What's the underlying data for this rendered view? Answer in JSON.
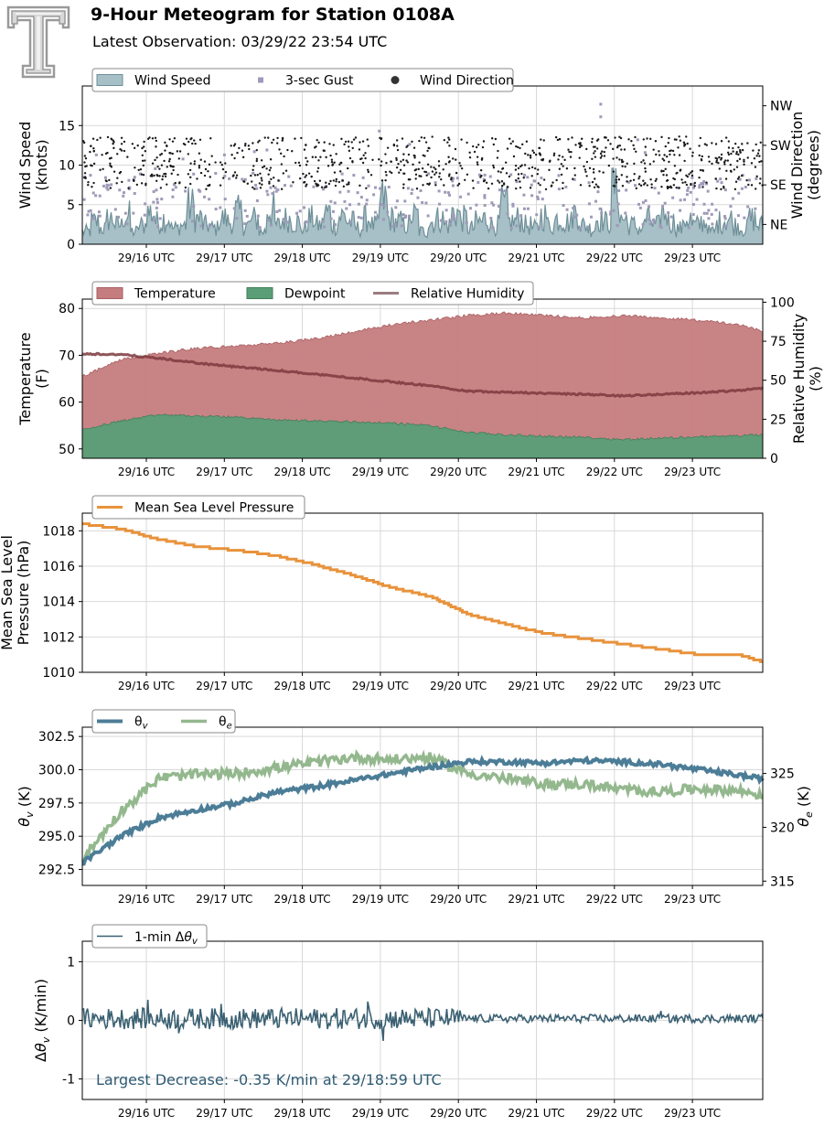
{
  "header": {
    "title": "9-Hour Meteogram for Station 0108A",
    "subtitle": "Latest Observation: 03/29/22 23:54 UTC"
  },
  "colors": {
    "wind_speed_fill": "#a7bfc6",
    "wind_speed_line": "#6e8f98",
    "gust": "#9e9ab8",
    "direction": "#1a1a1a",
    "temperature": "#c57c7e",
    "dewpoint": "#5a9e77",
    "humidity": "#7c3a3d",
    "pressure": "#e8923b",
    "theta_v": "#4c7d97",
    "theta_e": "#94b88e",
    "dtheta": "#3a6072",
    "annotation": "#2e5b74",
    "logo": "#9a9a9a"
  },
  "chart_data": [
    {
      "id": "wind",
      "type": "area",
      "x_range": [
        "03/29 15:05",
        "03/29 23:54"
      ],
      "x_tick_labels": [
        "29/16 UTC",
        "29/17 UTC",
        "29/18 UTC",
        "29/19 UTC",
        "29/20 UTC",
        "29/21 UTC",
        "29/22 UTC",
        "29/23 UTC"
      ],
      "ylabel": "Wind Speed\n(knots)",
      "ylim": [
        0,
        20
      ],
      "y_ticks": [
        0,
        5,
        10,
        15
      ],
      "y2label": "Wind Direction\n(degrees)",
      "y2lim": [
        0,
        360
      ],
      "y2_ticks": [
        {
          "value": 45,
          "label": "NE"
        },
        {
          "value": 135,
          "label": "SE"
        },
        {
          "value": 225,
          "label": "SW"
        },
        {
          "value": 315,
          "label": "NW"
        }
      ],
      "legend": [
        "Wind Speed",
        "3-sec Gust",
        "Wind Direction"
      ],
      "legend_placement": "top-left",
      "grid": true,
      "series": [
        {
          "name": "Wind Speed",
          "kind": "filled-area",
          "approx_mean_knots": 2.8,
          "approx_max_knots": 9.5,
          "shape": [
            2,
            3.5,
            2.5,
            4,
            3,
            4.5,
            2,
            3,
            5,
            3.5,
            4,
            2.5,
            3,
            6,
            4,
            3,
            2.5,
            4,
            3.5,
            5,
            3,
            4,
            2,
            5.5,
            3,
            4,
            3.5,
            2.5,
            4,
            3,
            5,
            3,
            4.5,
            3.5,
            2.5,
            4,
            3,
            7,
            4,
            3.5,
            3,
            4.5,
            2,
            3.5,
            4,
            3,
            5,
            4,
            2.5,
            3.5,
            4,
            3,
            6,
            3.5,
            4,
            3,
            2.5,
            4.5,
            3,
            4,
            3.5,
            5,
            3,
            2.5,
            4,
            3.5,
            9.5,
            4,
            3,
            2.5,
            4,
            3,
            5,
            3.5,
            2.5,
            4,
            3,
            3.5,
            2,
            3.5,
            4,
            3,
            2.5,
            4,
            3
          ]
        },
        {
          "name": "3-sec Gust",
          "kind": "scatter",
          "approx_range_knots": [
            1,
            18
          ],
          "approx_mean_knots": 6,
          "notable_max_knots": 17.7,
          "notable_max_time": "03/29 22:09"
        },
        {
          "name": "Wind Direction",
          "kind": "scatter",
          "approx_range_degrees": [
            120,
            250
          ],
          "approx_mean_degrees": 185
        }
      ]
    },
    {
      "id": "thermo",
      "type": "area",
      "x_tick_labels": [
        "29/16 UTC",
        "29/17 UTC",
        "29/18 UTC",
        "29/19 UTC",
        "29/20 UTC",
        "29/21 UTC",
        "29/22 UTC",
        "29/23 UTC"
      ],
      "ylabel": "Temperature\n(F)",
      "ylim": [
        48,
        82
      ],
      "y_ticks": [
        50,
        60,
        70,
        80
      ],
      "y2label": "Relative Humidity\n(%)",
      "y2lim": [
        0,
        102
      ],
      "y2_ticks": [
        0,
        25,
        50,
        75,
        100
      ],
      "legend": [
        "Temperature",
        "Dewpoint",
        "Relative Humidity"
      ],
      "legend_placement": "top-left",
      "grid": true,
      "series": [
        {
          "name": "Temperature",
          "unit": "F",
          "x_hours": [
            0,
            0.5,
            1,
            1.5,
            2,
            2.5,
            3,
            3.5,
            4,
            4.5,
            5,
            5.5,
            6,
            6.5,
            7,
            7.5,
            8,
            8.5,
            8.82
          ],
          "values": [
            65.5,
            69,
            70.5,
            71.5,
            72,
            72.5,
            73.5,
            75,
            76.5,
            77.5,
            78.5,
            79,
            78.5,
            78,
            78.5,
            78,
            77.5,
            76.5,
            75.2
          ]
        },
        {
          "name": "Dewpoint",
          "unit": "F",
          "x_hours": [
            0,
            0.5,
            1,
            1.5,
            2,
            2.5,
            3,
            3.5,
            4,
            4.5,
            5,
            5.5,
            6,
            6.5,
            7,
            7.5,
            8,
            8.5,
            8.82
          ],
          "values": [
            54,
            56,
            57.3,
            57,
            56.8,
            56.2,
            56,
            55.8,
            55.5,
            55,
            53.5,
            53,
            52.7,
            52.5,
            52,
            52.3,
            52.6,
            52.8,
            53
          ]
        },
        {
          "name": "Relative Humidity",
          "unit": "%",
          "x_hours": [
            0,
            0.5,
            1,
            1.5,
            2,
            2.5,
            3,
            3.5,
            4,
            4.5,
            5,
            5.5,
            6,
            6.5,
            7,
            7.5,
            8,
            8.5,
            8.82
          ],
          "values": [
            67,
            66.5,
            64,
            61,
            58.5,
            56.5,
            54,
            51.5,
            49,
            46.5,
            43,
            42.5,
            41.5,
            41,
            40,
            41,
            42,
            43.5,
            45
          ]
        }
      ]
    },
    {
      "id": "pressure",
      "type": "line",
      "x_tick_labels": [
        "29/16 UTC",
        "29/17 UTC",
        "29/18 UTC",
        "29/19 UTC",
        "29/20 UTC",
        "29/21 UTC",
        "29/22 UTC",
        "29/23 UTC"
      ],
      "ylabel": "Mean Sea Level\nPressure (hPa)",
      "ylim": [
        1010,
        1019
      ],
      "y_ticks": [
        1010,
        1012,
        1014,
        1016,
        1018
      ],
      "legend": [
        "Mean Sea Level Pressure"
      ],
      "legend_placement": "top-left",
      "grid": true,
      "series": [
        {
          "name": "Mean Sea Level Pressure",
          "unit": "hPa",
          "x_hours": [
            0,
            0.5,
            1,
            1.5,
            2,
            2.5,
            3,
            3.5,
            4,
            4.5,
            5,
            5.5,
            6,
            6.5,
            7,
            7.5,
            8,
            8.5,
            8.82
          ],
          "values": [
            1018.4,
            1018.1,
            1017.5,
            1017.1,
            1016.9,
            1016.6,
            1016.1,
            1015.5,
            1014.8,
            1014.3,
            1013.3,
            1012.7,
            1012.2,
            1011.9,
            1011.6,
            1011.3,
            1011.0,
            1011.0,
            1010.6
          ]
        }
      ]
    },
    {
      "id": "theta",
      "type": "line",
      "x_tick_labels": [
        "29/16 UTC",
        "29/17 UTC",
        "29/18 UTC",
        "29/19 UTC",
        "29/20 UTC",
        "29/21 UTC",
        "29/22 UTC",
        "29/23 UTC"
      ],
      "ylabel": "θv (K)",
      "ylim": [
        291.3,
        303.2
      ],
      "y_ticks": [
        292.5,
        295.0,
        297.5,
        300.0,
        302.5
      ],
      "y_tick_labels": [
        "292.5",
        "295.0",
        "297.5",
        "300.0",
        "302.5"
      ],
      "y2label": "θe (K)",
      "y2lim": [
        314.6,
        329.3
      ],
      "y2_ticks": [
        315,
        320,
        325
      ],
      "legend": [
        "θv",
        "θe"
      ],
      "legend_placement": "top-left",
      "grid": true,
      "series": [
        {
          "name": "θv",
          "unit": "K",
          "x_hours": [
            0,
            0.5,
            1,
            1.5,
            2,
            2.5,
            3,
            3.5,
            4,
            4.5,
            5,
            5.5,
            6,
            6.5,
            7,
            7.5,
            8,
            8.5,
            8.82
          ],
          "values": [
            293.0,
            295.0,
            296.4,
            297.0,
            297.5,
            298.3,
            298.7,
            299.2,
            299.7,
            300.2,
            300.6,
            300.6,
            300.5,
            300.7,
            300.6,
            300.4,
            300.0,
            299.6,
            299.3
          ]
        },
        {
          "name": "θe",
          "unit": "K",
          "x_hours": [
            0,
            0.5,
            1,
            1.5,
            2,
            2.5,
            3,
            3.5,
            4,
            4.5,
            5,
            5.5,
            6,
            6.5,
            7,
            7.5,
            8,
            8.5,
            8.82
          ],
          "values": [
            317.0,
            321.5,
            324.6,
            324.9,
            325.0,
            325.5,
            326.0,
            326.5,
            326.3,
            326.5,
            325.0,
            324.5,
            324.0,
            324.0,
            323.5,
            323.3,
            323.6,
            323.4,
            323.0
          ]
        }
      ]
    },
    {
      "id": "dtheta",
      "type": "line",
      "x_tick_labels": [
        "29/16 UTC",
        "29/17 UTC",
        "29/18 UTC",
        "29/19 UTC",
        "29/20 UTC",
        "29/21 UTC",
        "29/22 UTC",
        "29/23 UTC"
      ],
      "ylabel": "Δθv (K/min)",
      "ylim": [
        -1.35,
        1.35
      ],
      "y_ticks": [
        -1,
        0,
        1
      ],
      "legend": [
        "1-min Δθv"
      ],
      "legend_placement": "top-left",
      "grid": true,
      "annotation": "Largest Decrease: -0.35 K/min at 29/18:59 UTC",
      "series": [
        {
          "name": "1-min Δθv",
          "unit": "K/min",
          "approx_amplitude_early": 0.18,
          "approx_amplitude_late": 0.07,
          "extreme_min": -0.35,
          "extreme_min_time": "29/18:59 UTC",
          "extreme_max": 0.35
        }
      ]
    }
  ]
}
